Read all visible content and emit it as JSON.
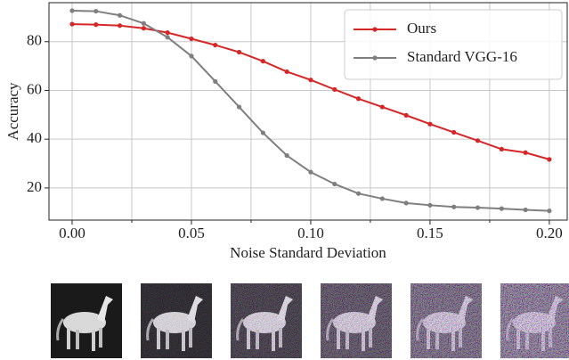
{
  "chart_data": {
    "type": "line",
    "x": [
      0.0,
      0.01,
      0.02,
      0.03,
      0.04,
      0.05,
      0.06,
      0.07,
      0.08,
      0.09,
      0.1,
      0.11,
      0.12,
      0.13,
      0.14,
      0.15,
      0.16,
      0.17,
      0.18,
      0.19,
      0.2
    ],
    "series": [
      {
        "name": "Ours",
        "color": "#d62728",
        "values": [
          87.2,
          87.0,
          86.6,
          85.5,
          83.7,
          81.2,
          78.6,
          75.7,
          72.0,
          67.7,
          64.3,
          60.4,
          56.6,
          53.2,
          49.8,
          46.2,
          42.8,
          39.4,
          35.9,
          34.5,
          31.7
        ]
      },
      {
        "name": "Standard VGG-16",
        "color": "#7f7f7f",
        "values": [
          92.7,
          92.5,
          90.8,
          87.5,
          81.8,
          74.1,
          63.7,
          53.2,
          42.6,
          33.3,
          26.5,
          21.6,
          17.7,
          15.6,
          13.8,
          12.9,
          12.2,
          11.9,
          11.5,
          11.0,
          10.6
        ]
      }
    ],
    "x_label": "Noise Standard Deviation",
    "y_label": "Accuracy",
    "xlim": [
      -0.0097,
      0.2075
    ],
    "ylim": [
      6.8,
      96
    ],
    "xticks": [
      {
        "value": 0,
        "label": "0.00"
      },
      {
        "value": 0.05,
        "label": "0.05"
      },
      {
        "value": 0.1,
        "label": "0.10"
      },
      {
        "value": 0.15,
        "label": "0.15"
      },
      {
        "value": 0.2,
        "label": "0.20"
      }
    ],
    "xminorticks": [
      0.025,
      0.075,
      0.125,
      0.175
    ],
    "yticks": [
      20,
      40,
      60,
      80
    ],
    "grid": true,
    "legend": "upper right"
  }
}
